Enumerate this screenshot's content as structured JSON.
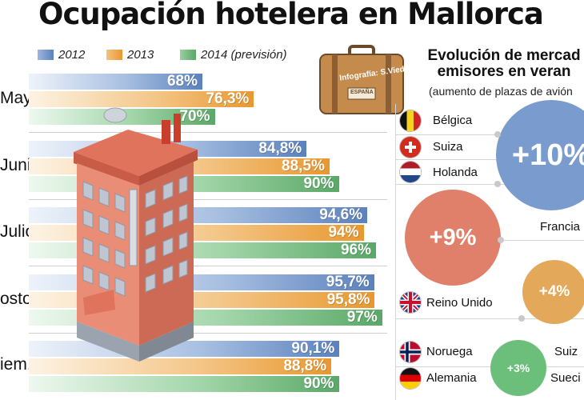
{
  "header": {
    "title": "Ocupación hotelera en Mallorca"
  },
  "legend": [
    {
      "label": "2012",
      "color": "#5b82bd"
    },
    {
      "label": "2013",
      "color": "#e8982f"
    },
    {
      "label": "2014 (previsión)",
      "color": "#5aa867"
    }
  ],
  "chart_data": [
    {
      "type": "bar",
      "orientation": "horizontal",
      "title": "Ocupación hotelera en Mallorca",
      "categories": [
        "Mayo",
        "Junio",
        "Julio",
        "Agosto",
        "Septiem."
      ],
      "category_labels_visible": [
        "Mayo",
        "Junio",
        "Julio",
        "osto",
        "iem."
      ],
      "series": [
        {
          "name": "2012",
          "values": [
            68,
            84.8,
            94.6,
            95.7,
            90.1
          ],
          "labels": [
            "68%",
            "84,8%",
            "94,6%",
            "95,7%",
            "90,1%"
          ]
        },
        {
          "name": "2013",
          "values": [
            76.3,
            88.5,
            94,
            95.8,
            88.8
          ],
          "labels": [
            "76,3%",
            "88,5%",
            "94%",
            "95,8%",
            "88,8%"
          ]
        },
        {
          "name": "2014 (previsión)",
          "values": [
            70,
            90,
            96,
            97,
            90
          ],
          "labels": [
            "70%",
            "90%",
            "96%",
            "97%",
            "90%"
          ]
        }
      ],
      "unit": "%",
      "legend_position": "top"
    },
    {
      "type": "bubble",
      "title": "Evolución de mercados emisores en verano",
      "title_visible": [
        "Evolución de mercad",
        "emisores en veran"
      ],
      "subtitle": "(aumento de plazas de avión)",
      "subtitle_visible": "(aumento de plazas de avión",
      "groups": [
        {
          "label": "+10%",
          "value": 10,
          "countries": [
            "Bélgica",
            "Suiza",
            "Holanda"
          ]
        },
        {
          "label": "+9%",
          "value": 9,
          "countries": [
            "Francia"
          ]
        },
        {
          "label": "+4%",
          "value": 4,
          "countries": [
            "Reino Unido"
          ]
        },
        {
          "label": "+3%",
          "value": 3,
          "countries": [
            "Noruega",
            "Suiza",
            "Alemania",
            "Suecia"
          ]
        }
      ],
      "country_labels_visible": [
        "Bélgica",
        "Suiza",
        "Holanda",
        "Francia",
        "Reino Unido",
        "Noruega",
        "Suiz",
        "Alemania",
        "Sueci"
      ]
    }
  ],
  "illustration": {
    "suitcase_label": "Infografía: S.Viedma",
    "suitcase_tag": "ESPAÑA",
    "building_sign": "Hotel"
  },
  "colors": {
    "blue": "#5b82bd",
    "orange": "#e8982f",
    "green": "#5aa867",
    "bubble10": "#7a9bcd",
    "bubble9": "#e0806a",
    "bubble4": "#e3a85a",
    "bubble3": "#6cbf7b"
  }
}
